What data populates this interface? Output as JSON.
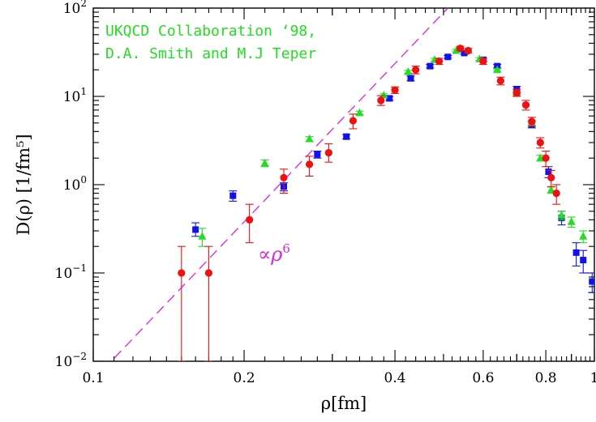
{
  "chart_data": {
    "type": "scatter",
    "x_scale": "log",
    "y_scale": "log",
    "xlim": [
      0.1,
      1.0
    ],
    "ylim": [
      0.01,
      100
    ],
    "xlabel": "ρ[fm]",
    "ylabel": "D(ρ)  [1/fm⁵]",
    "x_ticks": [
      {
        "value": 0.1,
        "label": "0.1"
      },
      {
        "value": 0.2,
        "label": "0.2"
      },
      {
        "value": 0.4,
        "label": "0.4"
      },
      {
        "value": 0.6,
        "label": "0.6"
      },
      {
        "value": 0.8,
        "label": "0.8"
      },
      {
        "value": 1.0,
        "label": "1"
      }
    ],
    "y_ticks": [
      {
        "value": 0.01,
        "base": "10",
        "exp": "−2"
      },
      {
        "value": 0.1,
        "base": "10",
        "exp": "−1"
      },
      {
        "value": 1,
        "base": "10",
        "exp": "0"
      },
      {
        "value": 10,
        "base": "10",
        "exp": "1"
      },
      {
        "value": 100,
        "base": "10",
        "exp": "2"
      }
    ],
    "annotations": {
      "line1": "UKQCD Collaboration ‘98,",
      "line2": "D.A. Smith and M.J Teper",
      "guide_prefix": "∝",
      "guide_rho": "ρ",
      "guide_exp": "6",
      "color": "#22dd22",
      "guide_color": "#dd22dd"
    },
    "guide_line": {
      "label": "∝ρ⁶",
      "points": [
        [
          0.1,
          0.0061
        ],
        [
          0.51,
          100
        ]
      ]
    },
    "series": [
      {
        "marker": "circle",
        "color": "#ee1111",
        "points": [
          [
            0.15,
            0.1,
            0.01,
            0.2
          ],
          [
            0.17,
            0.1,
            0.01,
            0.2
          ],
          [
            0.205,
            0.4,
            0.22,
            0.6
          ],
          [
            0.24,
            1.2,
            0.8,
            1.5
          ],
          [
            0.27,
            1.7,
            1.25,
            2.1
          ],
          [
            0.295,
            2.3,
            1.8,
            2.9
          ],
          [
            0.33,
            5.3,
            4.3,
            6.3
          ],
          [
            0.375,
            9.0,
            7.9,
            10.2
          ],
          [
            0.4,
            11.8,
            10.8,
            12.8
          ],
          [
            0.44,
            20.0,
            18.0,
            22.0
          ],
          [
            0.49,
            25.0,
            23.0,
            27.0
          ],
          [
            0.54,
            35.0,
            33.0,
            37.0
          ],
          [
            0.56,
            33.0,
            31.0,
            35.0
          ],
          [
            0.6,
            25.0,
            23.0,
            27.0
          ],
          [
            0.65,
            15.0,
            13.5,
            16.5
          ],
          [
            0.7,
            11.0,
            10.0,
            12.0
          ],
          [
            0.73,
            8.0,
            7.0,
            9.0
          ],
          [
            0.75,
            5.2,
            4.6,
            5.8
          ],
          [
            0.78,
            3.0,
            2.6,
            3.4
          ],
          [
            0.8,
            2.0,
            1.6,
            2.4
          ],
          [
            0.82,
            1.2,
            0.95,
            1.45
          ],
          [
            0.84,
            0.8,
            0.6,
            1.0
          ]
        ]
      },
      {
        "marker": "square",
        "color": "#1111ee",
        "points": [
          [
            0.16,
            0.31,
            0.26,
            0.37
          ],
          [
            0.19,
            0.75,
            0.65,
            0.85
          ],
          [
            0.24,
            0.95,
            0.85,
            1.05
          ],
          [
            0.28,
            2.2,
            2.0,
            2.4
          ],
          [
            0.32,
            3.5,
            3.3,
            3.7
          ],
          [
            0.39,
            9.5,
            9.0,
            10.0
          ],
          [
            0.43,
            16.0,
            15.0,
            17.0
          ],
          [
            0.47,
            22.0,
            21.0,
            23.0
          ],
          [
            0.51,
            28.0,
            27.0,
            29.0
          ],
          [
            0.55,
            31.0,
            30.0,
            32.0
          ],
          [
            0.6,
            26.0,
            25.0,
            27.0
          ],
          [
            0.64,
            22.0,
            21.0,
            23.0
          ],
          [
            0.7,
            12.0,
            11.0,
            13.0
          ],
          [
            0.75,
            4.8,
            4.4,
            5.2
          ],
          [
            0.81,
            1.4,
            1.2,
            1.6
          ],
          [
            0.86,
            0.42,
            0.35,
            0.5
          ],
          [
            0.92,
            0.17,
            0.12,
            0.22
          ],
          [
            0.95,
            0.14,
            0.1,
            0.18
          ],
          [
            0.99,
            0.08,
            0.06,
            0.1
          ]
        ]
      },
      {
        "marker": "triangle",
        "color": "#22dd22",
        "points": [
          [
            0.165,
            0.26,
            0.2,
            0.32
          ],
          [
            0.22,
            1.75,
            1.6,
            1.9
          ],
          [
            0.27,
            3.3,
            3.1,
            3.5
          ],
          [
            0.34,
            6.5,
            6.2,
            6.8
          ],
          [
            0.38,
            10.3,
            9.9,
            10.7
          ],
          [
            0.425,
            19.0,
            18.3,
            19.7
          ],
          [
            0.48,
            26.0,
            25.0,
            27.0
          ],
          [
            0.53,
            33.0,
            32.0,
            34.0
          ],
          [
            0.59,
            26.5,
            25.5,
            27.5
          ],
          [
            0.64,
            20.0,
            19.3,
            20.7
          ],
          [
            0.7,
            11.0,
            10.5,
            11.5
          ],
          [
            0.75,
            5.0,
            4.7,
            5.3
          ],
          [
            0.78,
            2.0,
            1.85,
            2.15
          ],
          [
            0.82,
            0.87,
            0.8,
            0.94
          ],
          [
            0.86,
            0.45,
            0.4,
            0.5
          ],
          [
            0.9,
            0.38,
            0.33,
            0.43
          ],
          [
            0.95,
            0.26,
            0.22,
            0.3
          ]
        ]
      }
    ]
  }
}
